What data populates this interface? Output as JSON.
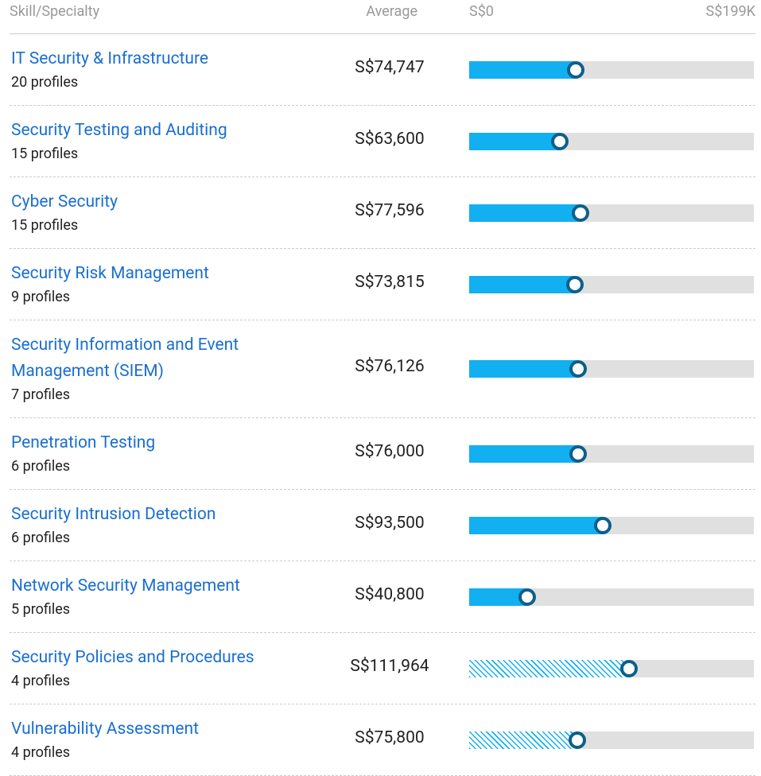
{
  "header": {
    "skill": "Skill/Specialty",
    "average": "Average",
    "scale": [
      {
        "value": 0,
        "label": "S$0"
      },
      {
        "value": 199000,
        "label": "S$199K"
      }
    ]
  },
  "rows": [
    {
      "name": "IT Security & Infrastructure",
      "profiles": "20 profiles",
      "average": {
        "value": 74747,
        "label": "S$74,747"
      },
      "pattern": "solid"
    },
    {
      "name": "Security Testing and Auditing",
      "profiles": "15 profiles",
      "average": {
        "value": 63600,
        "label": "S$63,600"
      },
      "pattern": "solid"
    },
    {
      "name": "Cyber Security",
      "profiles": "15 profiles",
      "average": {
        "value": 77596,
        "label": "S$77,596"
      },
      "pattern": "solid"
    },
    {
      "name": "Security Risk Management",
      "profiles": "9 profiles",
      "average": {
        "value": 73815,
        "label": "S$73,815"
      },
      "pattern": "solid"
    },
    {
      "name": "Security Information and Event Management (SIEM)",
      "profiles": "7 profiles",
      "average": {
        "value": 76126,
        "label": "S$76,126"
      },
      "pattern": "solid"
    },
    {
      "name": "Penetration Testing",
      "profiles": "6 profiles",
      "average": {
        "value": 76000,
        "label": "S$76,000"
      },
      "pattern": "solid"
    },
    {
      "name": "Security Intrusion Detection",
      "profiles": "6 profiles",
      "average": {
        "value": 93500,
        "label": "S$93,500"
      },
      "pattern": "solid"
    },
    {
      "name": "Network Security Management",
      "profiles": "5 profiles",
      "average": {
        "value": 40800,
        "label": "S$40,800"
      },
      "pattern": "solid"
    },
    {
      "name": "Security Policies and Procedures",
      "profiles": "4 profiles",
      "average": {
        "value": 111964,
        "label": "S$111,964"
      },
      "pattern": "hatched"
    },
    {
      "name": "Vulnerability Assessment",
      "profiles": "4 profiles",
      "average": {
        "value": 75800,
        "label": "S$75,800"
      },
      "pattern": "hatched"
    }
  ]
}
